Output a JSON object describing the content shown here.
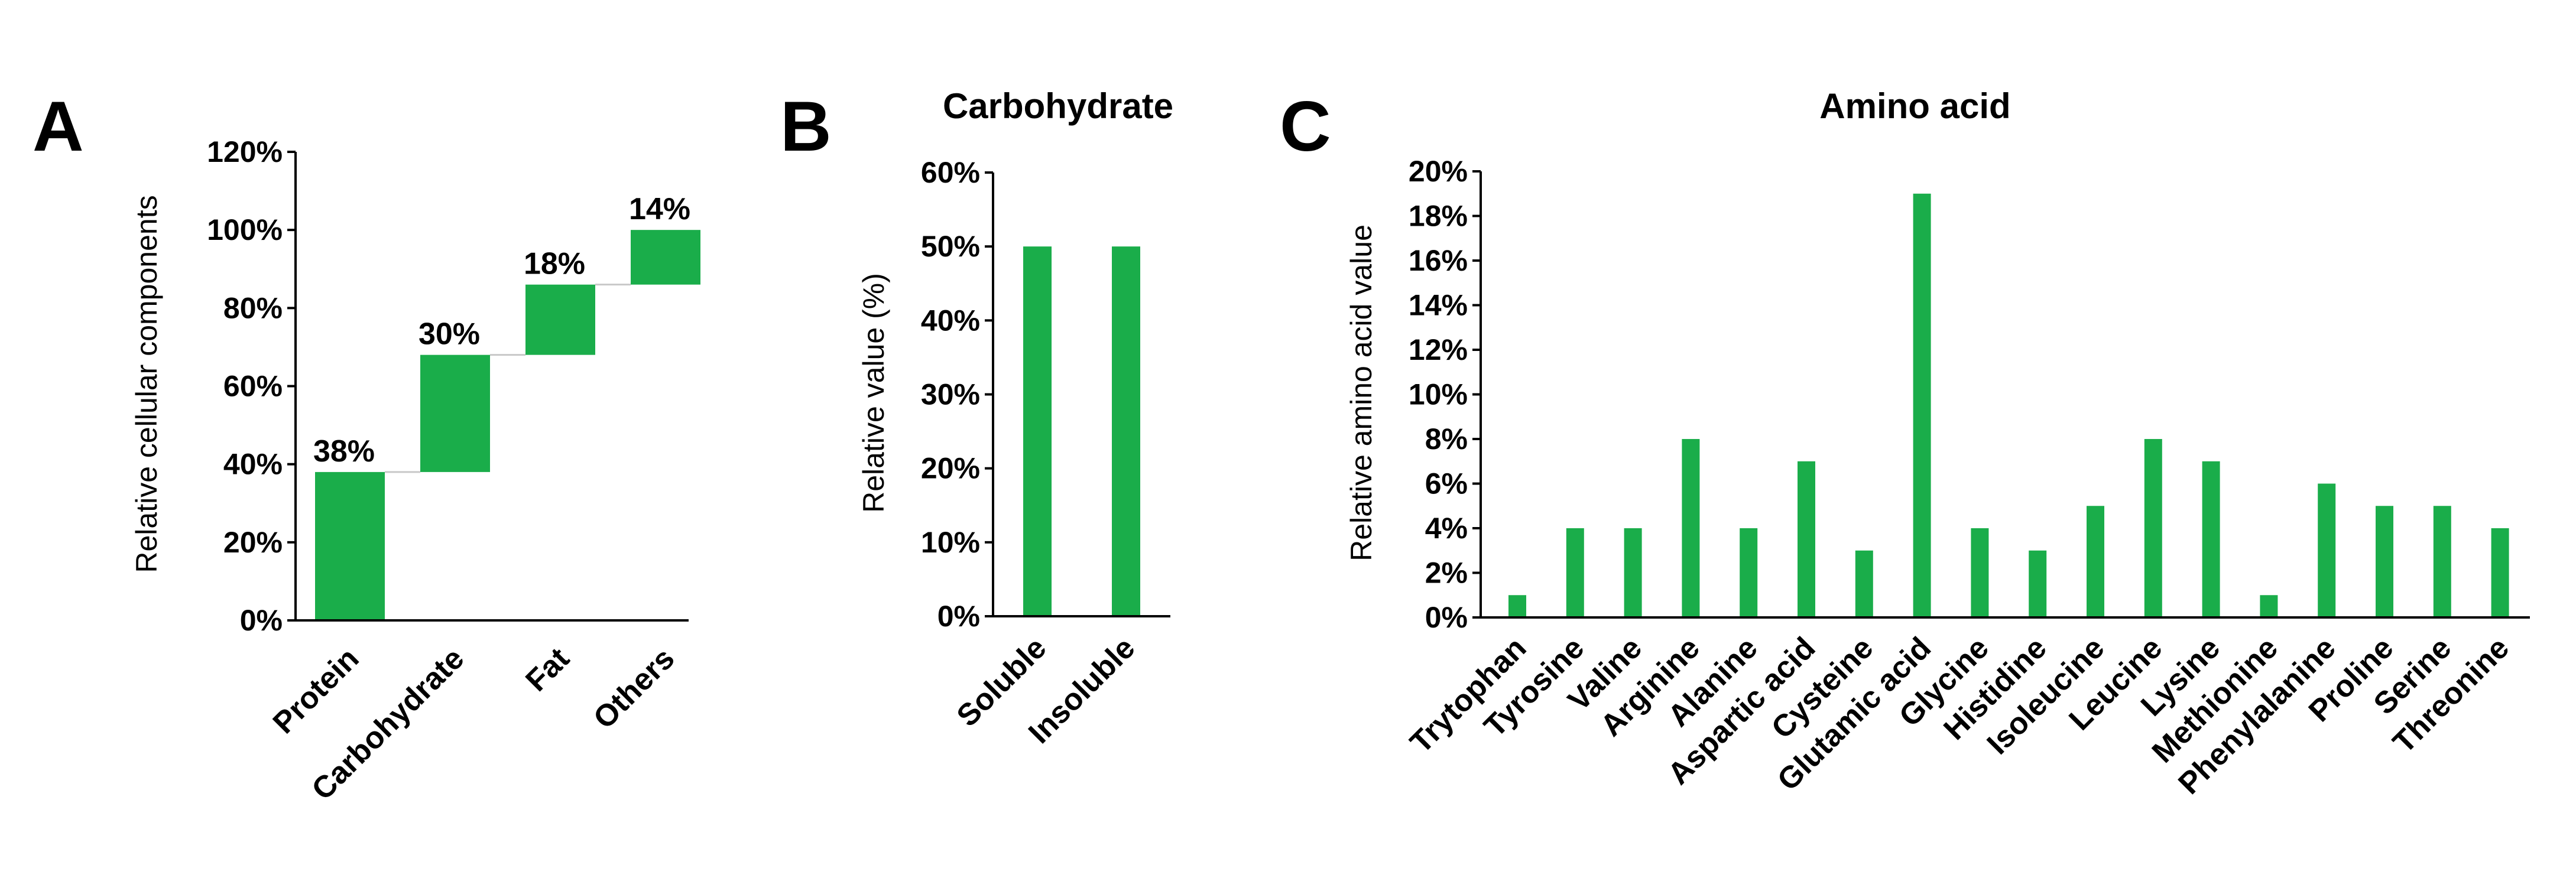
{
  "colors": {
    "bar": "#1aad4a",
    "axis": "#000000",
    "connector": "#c8c8c8"
  },
  "chart_data": [
    {
      "panel": "A",
      "type": "bar",
      "subtype": "waterfall",
      "title": "",
      "ylabel": "Relative cellular components",
      "xlabel": "",
      "categories": [
        "Protein",
        "Carbohydrate",
        "Fat",
        "Others"
      ],
      "values": [
        38,
        30,
        18,
        14
      ],
      "data_labels": [
        "38%",
        "30%",
        "18%",
        "14%"
      ],
      "ylim": [
        0,
        120
      ],
      "yticks": [
        0,
        20,
        40,
        60,
        80,
        100,
        120
      ],
      "ytick_labels": [
        "0%",
        "20%",
        "40%",
        "60%",
        "80%",
        "100%",
        "120%"
      ]
    },
    {
      "panel": "B",
      "type": "bar",
      "title": "Carbohydrate",
      "ylabel": "Relative value (%)",
      "xlabel": "",
      "categories": [
        "Soluble",
        "Insoluble"
      ],
      "values": [
        50,
        50
      ],
      "ylim": [
        0,
        60
      ],
      "yticks": [
        0,
        10,
        20,
        30,
        40,
        50,
        60
      ],
      "ytick_labels": [
        "0%",
        "10%",
        "20%",
        "30%",
        "40%",
        "50%",
        "60%"
      ]
    },
    {
      "panel": "C",
      "type": "bar",
      "title": "Amino acid",
      "ylabel": "Relative amino acid value",
      "xlabel": "",
      "categories": [
        "Trytophan",
        "Tyrosine",
        "Valine",
        "Arginine",
        "Alanine",
        "Aspartic acid",
        "Cysteine",
        "Glutamic acid",
        "Glycine",
        "Histidine",
        "Isoleucine",
        "Leucine",
        "Lysine",
        "Methionine",
        "Phenylalanine",
        "Proline",
        "Serine",
        "Threonine"
      ],
      "values": [
        1,
        4,
        4,
        8,
        4,
        7,
        3,
        19,
        4,
        3,
        5,
        8,
        7,
        1,
        6,
        5,
        5,
        4
      ],
      "ylim": [
        0,
        20
      ],
      "yticks": [
        0,
        2,
        4,
        6,
        8,
        10,
        12,
        14,
        16,
        18,
        20
      ],
      "ytick_labels": [
        "0%",
        "2%",
        "4%",
        "6%",
        "8%",
        "10%",
        "12%",
        "14%",
        "16%",
        "18%",
        "20%"
      ]
    }
  ]
}
